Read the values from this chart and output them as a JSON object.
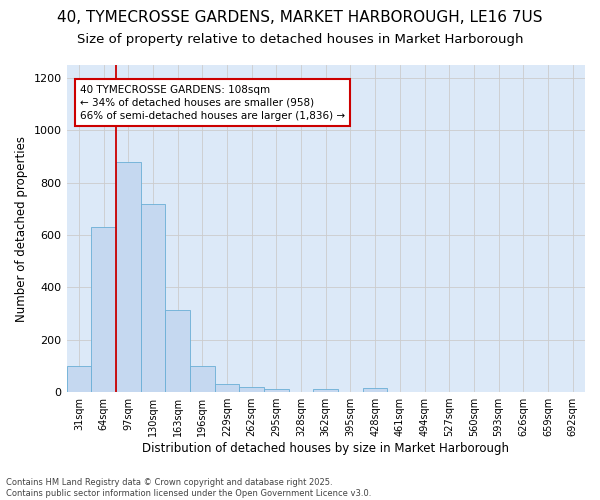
{
  "title": "40, TYMECROSSE GARDENS, MARKET HARBOROUGH, LE16 7US",
  "subtitle": "Size of property relative to detached houses in Market Harborough",
  "xlabel": "Distribution of detached houses by size in Market Harborough",
  "ylabel": "Number of detached properties",
  "categories": [
    "31sqm",
    "64sqm",
    "97sqm",
    "130sqm",
    "163sqm",
    "196sqm",
    "229sqm",
    "262sqm",
    "295sqm",
    "328sqm",
    "362sqm",
    "395sqm",
    "428sqm",
    "461sqm",
    "494sqm",
    "527sqm",
    "560sqm",
    "593sqm",
    "626sqm",
    "659sqm",
    "692sqm"
  ],
  "values": [
    100,
    630,
    880,
    720,
    315,
    100,
    30,
    20,
    10,
    0,
    10,
    0,
    15,
    0,
    0,
    0,
    0,
    0,
    0,
    0,
    0
  ],
  "bar_color": "#c5d8f0",
  "bar_edge_color": "#6aaed6",
  "grid_color": "#cccccc",
  "vline_color": "#cc0000",
  "vline_pos": 1.5,
  "annotation_text": "40 TYMECROSSE GARDENS: 108sqm\n← 34% of detached houses are smaller (958)\n66% of semi-detached houses are larger (1,836) →",
  "annotation_box_color": "#cc0000",
  "ylim": [
    0,
    1250
  ],
  "yticks": [
    0,
    200,
    400,
    600,
    800,
    1000,
    1200
  ],
  "footer_line1": "Contains HM Land Registry data © Crown copyright and database right 2025.",
  "footer_line2": "Contains public sector information licensed under the Open Government Licence v3.0.",
  "bg_color": "#dce9f8",
  "title_fontsize": 11,
  "subtitle_fontsize": 9.5
}
